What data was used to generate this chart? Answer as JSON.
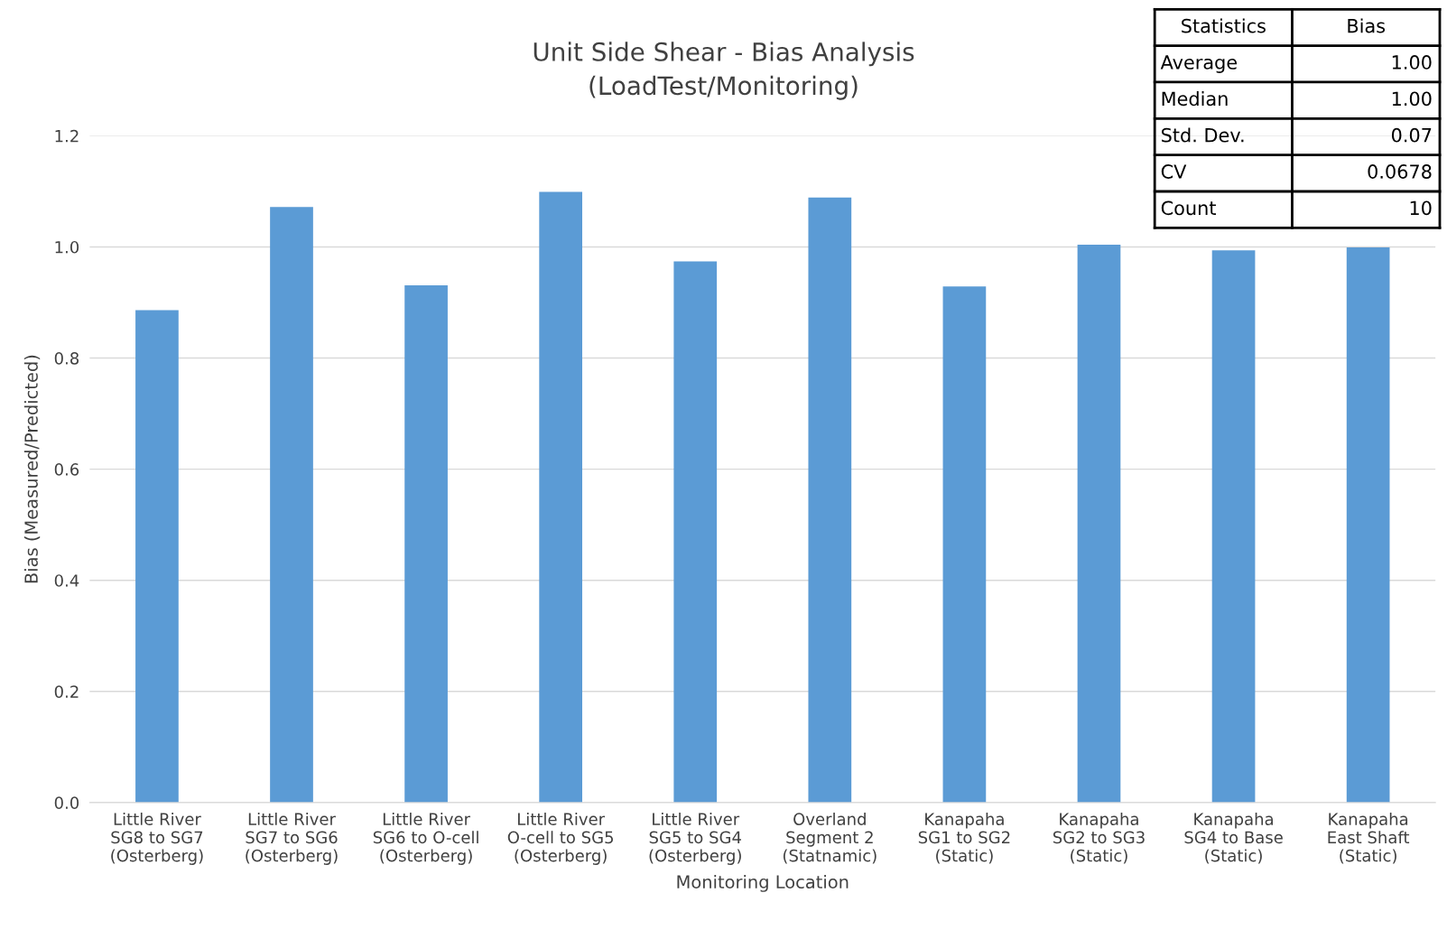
{
  "chart_data": {
    "type": "bar",
    "title": "Unit Side Shear - Bias Analysis\n(LoadTest/Monitoring)",
    "xlabel": "Monitoring Location",
    "ylabel": "Bias (Measured/Predicted)",
    "categories": [
      "Little River\nSG8 to SG7\n(Osterberg)",
      "Little River\nSG7 to SG6\n(Osterberg)",
      "Little River\nSG6 to O-cell\n(Osterberg)",
      "Little River\nO-cell to SG5\n(Osterberg)",
      "Little River\nSG5 to SG4\n(Osterberg)",
      "Overland\nSegment 2\n(Statnamic)",
      "Kanapaha\nSG1 to SG2\n(Static)",
      "Kanapaha\nSG2 to SG3\n(Static)",
      "Kanapaha\nSG4 to Base\n(Static)",
      "Kanapaha\nEast Shaft\n(Static)"
    ],
    "values": [
      0.886,
      1.072,
      0.931,
      1.099,
      0.974,
      1.089,
      0.929,
      1.004,
      0.994,
      0.999
    ],
    "color": "#5b9bd5",
    "ylim": [
      0,
      1.2
    ],
    "yticks": [
      {
        "value": 0,
        "label": "0.0"
      },
      {
        "value": 0.2,
        "label": "0.2"
      },
      {
        "value": 0.4,
        "label": "0.4"
      },
      {
        "value": 0.6,
        "label": "0.6"
      },
      {
        "value": 0.8,
        "label": "0.8"
      },
      {
        "value": 1.0,
        "label": "1.0"
      },
      {
        "value": 1.2,
        "label": "1.2"
      }
    ],
    "grid": "y",
    "annotations": [
      "Statistics",
      "Bias",
      "Average",
      "1.00",
      "Median",
      "1.00",
      "Std. Dev.",
      "0.07",
      "CV",
      "0.0678",
      "Count",
      "10"
    ]
  }
}
